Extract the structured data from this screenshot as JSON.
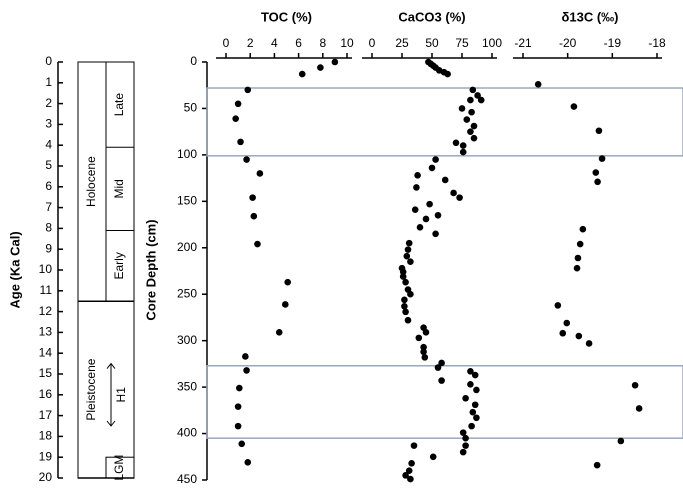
{
  "chart_data": [
    {
      "type": "scatter",
      "title": "TOC (%)",
      "ylabel": "Core Depth (cm)",
      "color": "#000000",
      "x": [
        9,
        7.8,
        6.3,
        1.8,
        1.0,
        0.8,
        1.2,
        1.7,
        2.8,
        2.2,
        2.3,
        2.6,
        5.1,
        4.9,
        4.4,
        1.6,
        1.7,
        1.1,
        1.0,
        1.0,
        1.3,
        1.8
      ],
      "y": [
        0,
        6,
        13,
        30,
        45,
        61,
        86,
        105,
        120,
        146,
        166,
        196,
        237,
        261,
        291,
        317,
        332,
        351,
        371,
        392,
        411,
        431
      ],
      "xlim": [
        0,
        10
      ],
      "xticks": [
        0,
        2,
        4,
        6,
        8,
        10
      ],
      "ylim": [
        0,
        450
      ],
      "yticks": [
        0,
        50,
        100,
        150,
        200,
        250,
        300,
        350,
        400,
        450
      ],
      "shaded_intervals": [
        [
          28,
          101
        ],
        [
          327,
          405
        ]
      ]
    },
    {
      "type": "scatter",
      "title": "CaCO3 (%)",
      "color": "#000000",
      "x": [
        47,
        49,
        51,
        53,
        56,
        60,
        63,
        84,
        88,
        82,
        91,
        75,
        83,
        79,
        85,
        82,
        85,
        70,
        76,
        76,
        53,
        50,
        38,
        61,
        37,
        68,
        73,
        48,
        36,
        55,
        45,
        40,
        53,
        31,
        30,
        29,
        32,
        25,
        26,
        26,
        28,
        30,
        32,
        27,
        27,
        28,
        30,
        43,
        45,
        39,
        43,
        43,
        44,
        58,
        55,
        82,
        86,
        58,
        82,
        87,
        78,
        86,
        84,
        87,
        83,
        76,
        78,
        78,
        76,
        35,
        33,
        51,
        31,
        28,
        32
      ],
      "y": [
        0,
        2,
        4,
        6,
        9,
        11,
        13,
        30,
        36,
        41,
        41,
        50,
        54,
        62,
        69,
        75,
        82,
        87,
        90,
        97,
        105,
        114,
        122,
        127,
        135,
        141,
        146,
        153,
        159,
        165,
        169,
        178,
        185,
        195,
        202,
        209,
        215,
        222,
        226,
        231,
        237,
        245,
        250,
        256,
        263,
        269,
        278,
        286,
        291,
        297,
        307,
        312,
        318,
        324,
        329,
        333,
        337,
        343,
        347,
        353,
        362,
        369,
        377,
        383,
        392,
        399,
        405,
        413,
        420,
        413,
        432,
        425,
        440,
        445,
        449
      ],
      "xlim": [
        0,
        100
      ],
      "xticks": [
        0,
        25,
        50,
        75,
        100
      ],
      "ylim": [
        0,
        450
      ]
    },
    {
      "type": "scatter",
      "title": "δ13C (‰)",
      "color": "#000000",
      "x": [
        -20.66,
        -19.86,
        -19.3,
        -19.23,
        -19.37,
        -19.33,
        -19.66,
        -19.72,
        -19.77,
        -19.79,
        -20.22,
        -20.02,
        -20.11,
        -19.75,
        -19.52,
        -18.49,
        -18.4,
        -18.81,
        -19.34
      ],
      "y": [
        24,
        48,
        74,
        104,
        119,
        129,
        180,
        196,
        211,
        222,
        262,
        281,
        292,
        295,
        303,
        348,
        373,
        408,
        434
      ],
      "xlim": [
        -21,
        -18
      ],
      "xticks": [
        -21,
        -20,
        -19,
        -18
      ],
      "ylim": [
        0,
        450
      ]
    }
  ],
  "age_scale": {
    "title": "Age (Ka Cal)",
    "ylim": [
      0,
      20
    ],
    "yticks": [
      0,
      1,
      2,
      3,
      4,
      5,
      6,
      7,
      8,
      9,
      10,
      11,
      12,
      13,
      14,
      15,
      16,
      17,
      18,
      19,
      20
    ],
    "epochs": [
      {
        "label": "Holocene",
        "start": 0,
        "end": 11.5
      },
      {
        "label": "Pleistocene",
        "start": 11.5,
        "end": 20
      }
    ],
    "stages": [
      {
        "label": "Late",
        "start": 0,
        "end": 4.1
      },
      {
        "label": "Mid",
        "start": 4.1,
        "end": 8.1
      },
      {
        "label": "Early",
        "start": 8.1,
        "end": 11.5
      }
    ],
    "events": [
      {
        "label": "H1",
        "start": 14.5,
        "end": 17.5
      },
      {
        "label": "LGM",
        "start": 19,
        "end": 20
      }
    ]
  }
}
